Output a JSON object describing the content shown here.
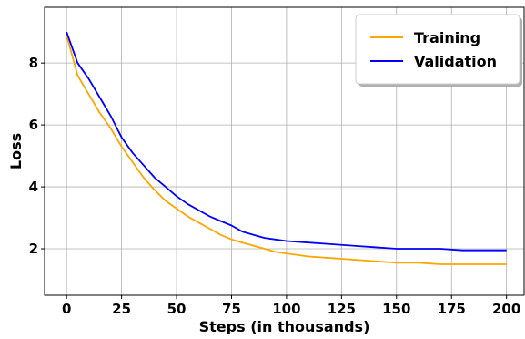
{
  "chart_data": {
    "type": "line",
    "title": "",
    "xlabel": "Steps (in thousands)",
    "ylabel": "Loss",
    "xlim": [
      -10,
      208
    ],
    "ylim": [
      0.5,
      9.8
    ],
    "xticks": [
      0,
      25,
      50,
      75,
      100,
      125,
      150,
      175,
      200
    ],
    "yticks": [
      2,
      4,
      6,
      8
    ],
    "grid": true,
    "legend_position": "top-right",
    "series": [
      {
        "name": "Training",
        "color": "#FFA500",
        "x": [
          0,
          5,
          10,
          15,
          20,
          25,
          30,
          35,
          40,
          45,
          50,
          55,
          60,
          65,
          70,
          75,
          80,
          85,
          90,
          95,
          100,
          110,
          120,
          130,
          140,
          150,
          160,
          170,
          180,
          190,
          200
        ],
        "y": [
          8.9,
          7.6,
          7.0,
          6.4,
          5.9,
          5.3,
          4.8,
          4.3,
          3.9,
          3.55,
          3.3,
          3.05,
          2.85,
          2.65,
          2.45,
          2.3,
          2.2,
          2.1,
          2.0,
          1.9,
          1.85,
          1.75,
          1.7,
          1.65,
          1.6,
          1.55,
          1.55,
          1.5,
          1.5,
          1.5,
          1.5
        ]
      },
      {
        "name": "Validation",
        "color": "#0000FF",
        "x": [
          0,
          5,
          10,
          15,
          20,
          25,
          30,
          35,
          40,
          45,
          50,
          55,
          60,
          65,
          70,
          75,
          80,
          85,
          90,
          95,
          100,
          110,
          120,
          130,
          140,
          150,
          160,
          170,
          180,
          190,
          200
        ],
        "y": [
          9.0,
          8.0,
          7.5,
          6.9,
          6.3,
          5.6,
          5.1,
          4.7,
          4.3,
          4.0,
          3.7,
          3.45,
          3.25,
          3.05,
          2.9,
          2.75,
          2.55,
          2.45,
          2.35,
          2.3,
          2.25,
          2.2,
          2.15,
          2.1,
          2.05,
          2.0,
          2.0,
          2.0,
          1.95,
          1.95,
          1.95
        ]
      }
    ]
  }
}
